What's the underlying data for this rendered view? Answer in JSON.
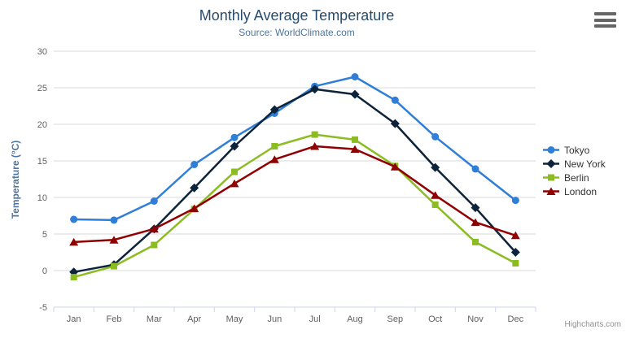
{
  "chart_data": {
    "type": "line",
    "title": "Monthly Average Temperature",
    "subtitle": "Source: WorldClimate.com",
    "xlabel": "",
    "ylabel": "Temperature (°C)",
    "categories": [
      "Jan",
      "Feb",
      "Mar",
      "Apr",
      "May",
      "Jun",
      "Jul",
      "Aug",
      "Sep",
      "Oct",
      "Nov",
      "Dec"
    ],
    "ylim": [
      -5,
      30
    ],
    "yticks": [
      -5,
      0,
      5,
      10,
      15,
      20,
      25,
      30
    ],
    "grid": true,
    "legend_position": "right-middle",
    "series": [
      {
        "name": "Tokyo",
        "color": "#2f7ed8",
        "marker": "circle",
        "values": [
          7.0,
          6.9,
          9.5,
          14.5,
          18.2,
          21.5,
          25.2,
          26.5,
          23.3,
          18.3,
          13.9,
          9.6
        ]
      },
      {
        "name": "New York",
        "color": "#0d233a",
        "marker": "diamond",
        "values": [
          -0.2,
          0.8,
          5.7,
          11.3,
          17.0,
          22.0,
          24.8,
          24.1,
          20.1,
          14.1,
          8.6,
          2.5
        ]
      },
      {
        "name": "Berlin",
        "color": "#8bbc21",
        "marker": "square",
        "values": [
          -0.9,
          0.6,
          3.5,
          8.4,
          13.5,
          17.0,
          18.6,
          17.9,
          14.3,
          9.0,
          3.9,
          1.0
        ]
      },
      {
        "name": "London",
        "color": "#910000",
        "marker": "triangle",
        "values": [
          3.9,
          4.2,
          5.7,
          8.5,
          11.9,
          15.2,
          17.0,
          16.6,
          14.2,
          10.3,
          6.6,
          4.8
        ]
      }
    ]
  },
  "colors": {
    "title": "#274b6d",
    "subtitle": "#4d759e",
    "y_axis_title": "#4d759e",
    "gridline": "#d8d8d8",
    "axis_line": "#ccd6eb",
    "tick": "#ccd6eb",
    "axis_label": "#606060",
    "legend_text": "#333333",
    "credits": "#909090",
    "menu_icon": "#666666"
  },
  "credits": {
    "label": "Highcharts.com"
  }
}
